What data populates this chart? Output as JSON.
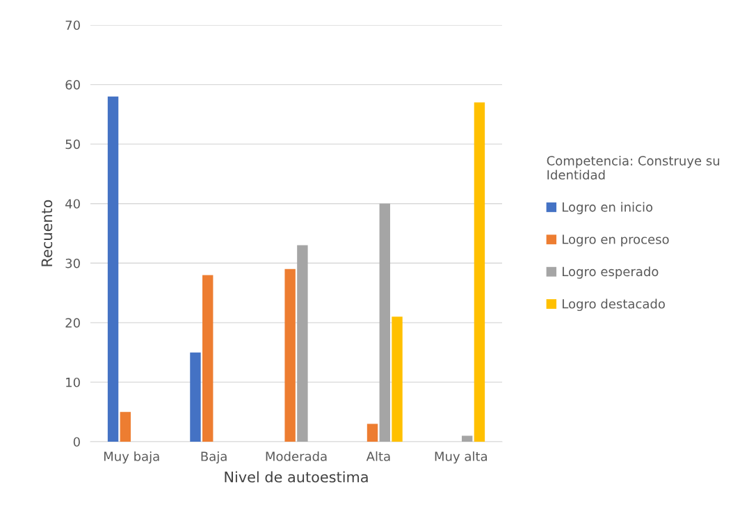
{
  "chart_data": {
    "type": "bar",
    "xlabel": "Nivel de autoestima",
    "ylabel": "Recuento",
    "legend_title": "Competencia: Construye su Identidad",
    "categories": [
      "Muy baja",
      "Baja",
      "Moderada",
      "Alta",
      "Muy alta"
    ],
    "series": [
      {
        "name": "Logro en inicio",
        "color": "#4472c4",
        "values": [
          58,
          15,
          0,
          0,
          0
        ]
      },
      {
        "name": "Logro en proceso",
        "color": "#ed7d31",
        "values": [
          5,
          28,
          29,
          3,
          0
        ]
      },
      {
        "name": "Logro esperado",
        "color": "#a5a5a5",
        "values": [
          0,
          0,
          33,
          40,
          1
        ]
      },
      {
        "name": "Logro destacado",
        "color": "#ffc000",
        "values": [
          0,
          0,
          0,
          21,
          57
        ]
      }
    ],
    "ylim": [
      0,
      70
    ],
    "yticks": [
      0,
      10,
      20,
      30,
      40,
      50,
      60,
      70
    ],
    "grid": "y",
    "legend": "right"
  }
}
